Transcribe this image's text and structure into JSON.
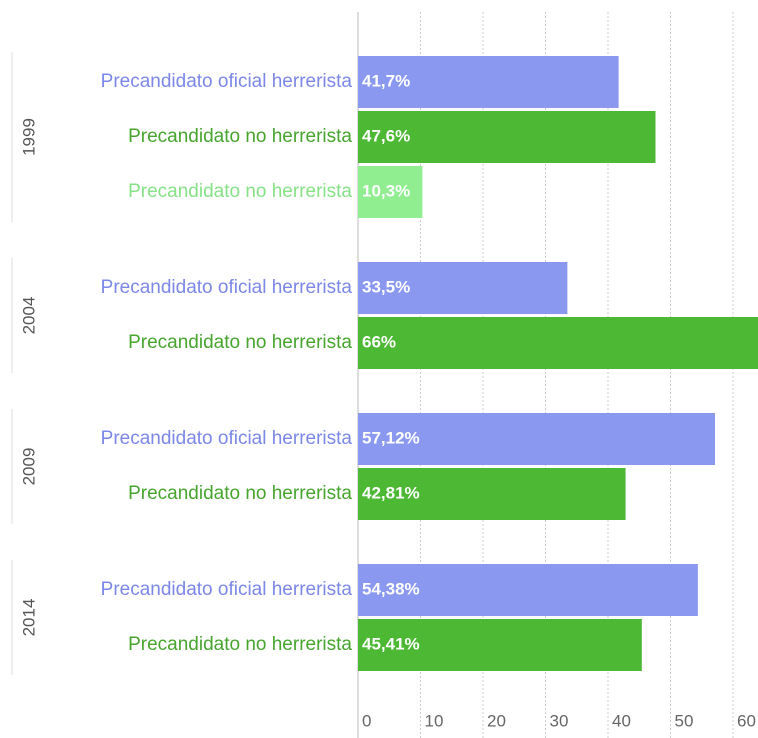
{
  "chart_data": {
    "type": "bar",
    "orientation": "horizontal",
    "groups": [
      {
        "name": "1999",
        "bars": [
          {
            "label": "Precandidato oficial herrerista",
            "value": 41.7,
            "value_label": "41,7%",
            "color": "#8b98f0"
          },
          {
            "label": "Precandidato no herrerista",
            "value": 47.6,
            "value_label": "47,6%",
            "color": "#4cb833"
          },
          {
            "label": "Precandidato no herrerista",
            "value": 10.3,
            "value_label": "10,3%",
            "color": "#90ee90"
          }
        ]
      },
      {
        "name": "2004",
        "bars": [
          {
            "label": "Precandidato oficial herrerista",
            "value": 33.5,
            "value_label": "33,5%",
            "color": "#8b98f0"
          },
          {
            "label": "Precandidato no herrerista",
            "value": 66,
            "value_label": "66%",
            "color": "#4cb833"
          }
        ]
      },
      {
        "name": "2009",
        "bars": [
          {
            "label": "Precandidato oficial herrerista",
            "value": 57.12,
            "value_label": "57,12%",
            "color": "#8b98f0"
          },
          {
            "label": "Precandidato no herrerista",
            "value": 42.81,
            "value_label": "42,81%",
            "color": "#4cb833"
          }
        ]
      },
      {
        "name": "2014",
        "bars": [
          {
            "label": "Precandidato oficial herrerista",
            "value": 54.38,
            "value_label": "54,38%",
            "color": "#8b98f0"
          },
          {
            "label": "Precandidato no herrerista",
            "value": 45.41,
            "value_label": "45,41%",
            "color": "#4cb833"
          }
        ]
      }
    ],
    "xlim": [
      0,
      64
    ],
    "xticks": [
      0,
      10,
      20,
      30,
      40,
      50,
      60
    ],
    "grid": true
  }
}
